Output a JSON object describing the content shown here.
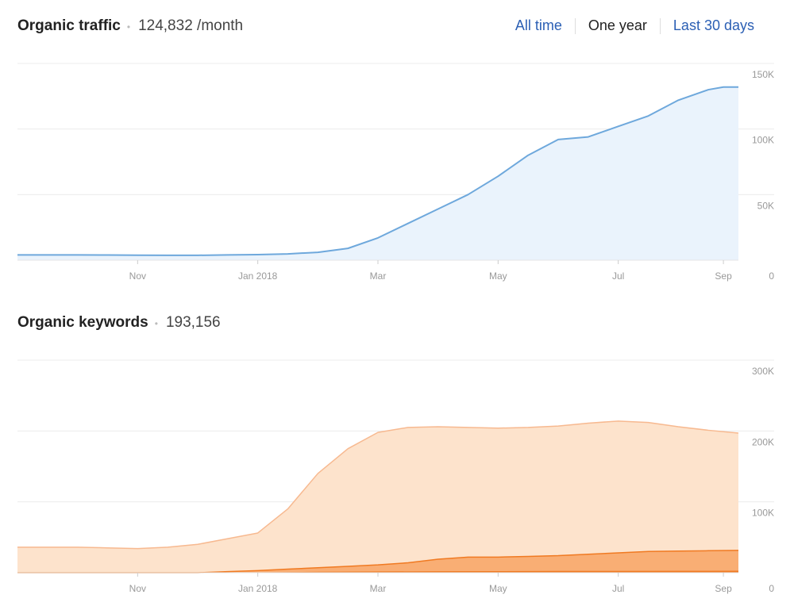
{
  "traffic": {
    "title": "Organic traffic",
    "value": "124,832 /month"
  },
  "keywords": {
    "title": "Organic keywords",
    "value": "193,156"
  },
  "ranges": [
    {
      "label": "All time",
      "active": false
    },
    {
      "label": "One year",
      "active": true
    },
    {
      "label": "Last 30 days",
      "active": false
    }
  ],
  "colors": {
    "traffic_line": "#6ea8dc",
    "traffic_fill": "#eaf3fc",
    "keywords_light": "#fde3cc",
    "keywords_light_line": "#f7b990",
    "keywords_mid": "#f9ae74",
    "keywords_dark": "#f07a22"
  },
  "chart_data": [
    {
      "type": "area",
      "title": "Organic traffic",
      "x_tick_labels": [
        "Nov",
        "Jan 2018",
        "Mar",
        "May",
        "Jul",
        "Sep"
      ],
      "y_tick_labels": [
        "150K",
        "100K",
        "50K",
        "0"
      ],
      "ylim": [
        0,
        150000
      ],
      "x_range": [
        0,
        12
      ],
      "grid": true,
      "series": [
        {
          "x": [
            0,
            0.5,
            1,
            1.5,
            2,
            2.5,
            3,
            3.5,
            4,
            4.5,
            5,
            5.5,
            6,
            6.5,
            7,
            7.5,
            8,
            8.5,
            9,
            9.5,
            10,
            10.5,
            11,
            11.5,
            11.75,
            12
          ],
          "values": [
            4000,
            4000,
            4000,
            3900,
            3800,
            3700,
            3700,
            4000,
            4200,
            4800,
            6000,
            9000,
            17000,
            28000,
            39000,
            50000,
            64000,
            80000,
            92000,
            94000,
            102000,
            110000,
            122000,
            130000,
            132000,
            132000
          ]
        }
      ]
    },
    {
      "type": "area",
      "title": "Organic keywords",
      "x_tick_labels": [
        "Nov",
        "Jan 2018",
        "Mar",
        "May",
        "Jul",
        "Sep"
      ],
      "y_tick_labels": [
        "300K",
        "200K",
        "100K",
        "0"
      ],
      "ylim": [
        0,
        300000
      ],
      "x_range": [
        0,
        12
      ],
      "grid": true,
      "series": [
        {
          "x": [
            0,
            0.5,
            1,
            1.5,
            2,
            2.5,
            3,
            3.5,
            4,
            4.5,
            5,
            5.5,
            6,
            6.5,
            7,
            7.5,
            8,
            8.5,
            9,
            9.5,
            10,
            10.5,
            11,
            11.5,
            12
          ],
          "values": [
            36000,
            36000,
            36000,
            35000,
            34000,
            36000,
            40000,
            48000,
            56000,
            90000,
            140000,
            175000,
            198000,
            205000,
            206000,
            205000,
            204000,
            205000,
            207000,
            211000,
            214000,
            212000,
            206000,
            201000,
            197000
          ]
        },
        {
          "x": [
            0,
            1,
            2,
            3,
            3.5,
            4,
            4.5,
            5,
            5.5,
            6,
            6.5,
            7,
            7.5,
            8,
            8.5,
            9,
            9.5,
            10,
            10.5,
            11,
            11.5,
            12
          ],
          "values": [
            0,
            0,
            0,
            0,
            1500,
            3000,
            5000,
            7000,
            9000,
            11000,
            14000,
            19000,
            22000,
            22000,
            23000,
            24000,
            26000,
            28000,
            30000,
            30500,
            31000,
            31500
          ]
        },
        {
          "x": [
            0,
            1,
            2,
            3,
            4,
            5,
            6,
            7,
            8,
            9,
            10,
            11,
            12
          ],
          "values": [
            0,
            0,
            0,
            0,
            0,
            800,
            1200,
            1500,
            1700,
            1900,
            2000,
            2100,
            2200
          ]
        }
      ]
    }
  ]
}
